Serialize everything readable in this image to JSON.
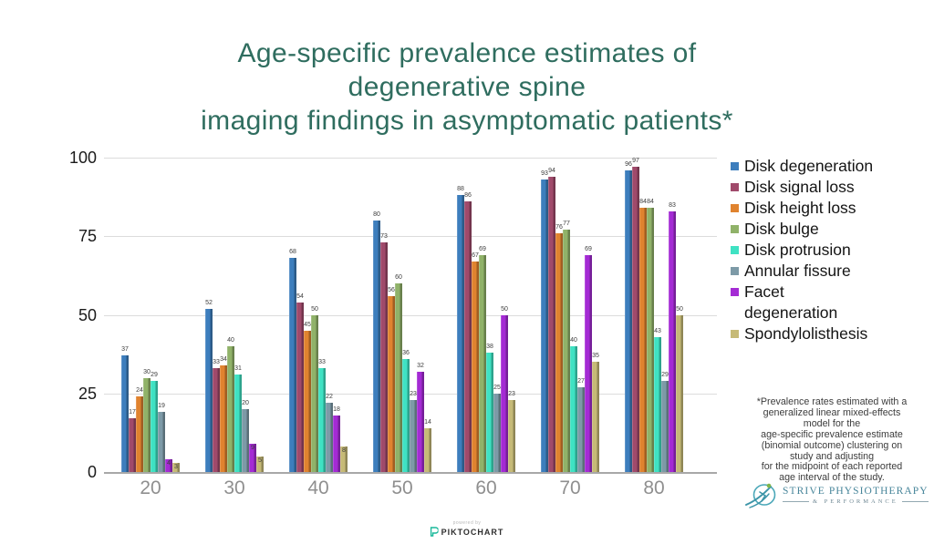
{
  "title": {
    "text": "Age-specific prevalence estimates of\ndegenerative spine\nimaging findings in asymptomatic patients*",
    "color": "#2f6d5f"
  },
  "chart_data": {
    "type": "bar",
    "title": "Age-specific prevalence estimates of degenerative spine imaging findings in asymptomatic patients*",
    "xlabel": "",
    "ylabel": "",
    "categories": [
      "20",
      "30",
      "40",
      "50",
      "60",
      "70",
      "80"
    ],
    "series": [
      {
        "name": "Disk degeneration",
        "legend_label": "Disk degeneration",
        "color": "#3d7ebd",
        "values": [
          37,
          52,
          68,
          80,
          88,
          93,
          96
        ]
      },
      {
        "name": "Disk signal loss",
        "legend_label": "Disk signal loss",
        "color": "#a04a6b",
        "values": [
          17,
          33,
          54,
          73,
          86,
          94,
          97
        ]
      },
      {
        "name": "Disk height loss",
        "legend_label": "Disk height loss",
        "color": "#e0832f",
        "values": [
          24,
          34,
          45,
          56,
          67,
          76,
          84
        ]
      },
      {
        "name": "Disk bulge",
        "legend_label": "Disk bulge",
        "color": "#90b269",
        "values": [
          30,
          40,
          50,
          60,
          69,
          77,
          84
        ]
      },
      {
        "name": "Disk protrusion",
        "legend_label": "Disk protrusion",
        "color": "#3fe2c3",
        "values": [
          29,
          31,
          33,
          36,
          38,
          40,
          43
        ]
      },
      {
        "name": "Annular fissure",
        "legend_label": "Annular fissure",
        "color": "#7d9aa7",
        "values": [
          19,
          20,
          22,
          23,
          25,
          27,
          29
        ]
      },
      {
        "name": "Facet degeneration",
        "legend_label": "Facet\ndegeneration",
        "color": "#a42bd4",
        "values": [
          4,
          9,
          18,
          32,
          50,
          69,
          83
        ]
      },
      {
        "name": "Spondylolisthesis",
        "legend_label": "Spondylolisthesis",
        "color": "#c6ba77",
        "values": [
          3,
          5,
          8,
          14,
          23,
          35,
          50
        ]
      }
    ],
    "yticks": [
      0,
      25,
      50,
      75,
      100
    ],
    "ylim": [
      0,
      100
    ],
    "grid": true,
    "legend_position": "right",
    "value_labels": true
  },
  "footnote": {
    "text": "*Prevalence rates estimated with a\ngeneralized linear mixed-effects\nmodel for the\nage-specific prevalence estimate\n(binomial outcome) clustering on\nstudy and adjusting\nfor the midpoint of each reported\nage interval of the study."
  },
  "logo": {
    "name": "STRIVE PHYSIOTHERAPY",
    "subtitle": "& PERFORMANCE"
  },
  "watermark": {
    "powered_by": "powered by",
    "brand": "PIKTOCHART"
  }
}
